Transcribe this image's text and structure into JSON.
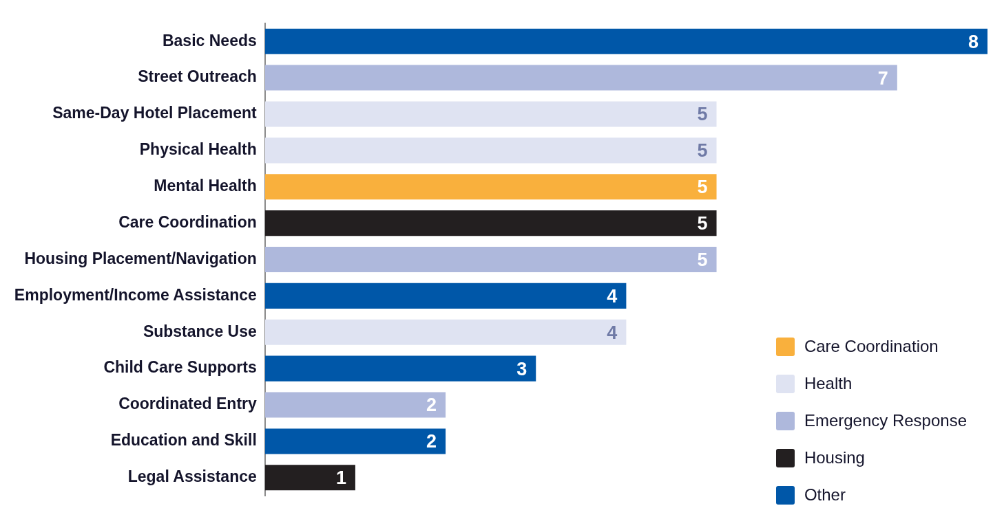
{
  "chart_data": {
    "type": "bar",
    "orientation": "horizontal",
    "data_labels": true,
    "tick_labels": "y",
    "legend": "bottom right",
    "xlim": [
      0,
      8
    ],
    "categories": [
      "Basic Needs",
      "Street Outreach",
      "Same-Day Hotel Placement",
      "Physical Health",
      "Mental Health",
      "Care Coordination",
      "Housing Placement/Navigation",
      "Employment/Income Assistance",
      "Substance Use",
      "Child Care Supports",
      "Coordinated Entry",
      "Education and Skill",
      "Legal Assistance"
    ],
    "series": [
      {
        "name": "Care Coordination",
        "color": "#f9b03d",
        "values": [
          null,
          null,
          null,
          null,
          5,
          null,
          null,
          null,
          null,
          null,
          null,
          null,
          null
        ]
      },
      {
        "name": "Health",
        "color": "#dfe3f2",
        "values": [
          null,
          null,
          5,
          5,
          null,
          null,
          null,
          null,
          4,
          null,
          null,
          null,
          null
        ]
      },
      {
        "name": "Emergency Response",
        "color": "#aeb8dc",
        "values": [
          null,
          7,
          null,
          null,
          null,
          null,
          5,
          null,
          null,
          null,
          2,
          null,
          null
        ]
      },
      {
        "name": "Housing",
        "color": "#231f20",
        "values": [
          null,
          null,
          null,
          null,
          null,
          5,
          null,
          null,
          null,
          null,
          null,
          null,
          1
        ]
      },
      {
        "name": "Other",
        "color": "#0057a8",
        "values": [
          8,
          null,
          null,
          null,
          null,
          null,
          null,
          4,
          null,
          3,
          null,
          2,
          null
        ]
      }
    ]
  }
}
